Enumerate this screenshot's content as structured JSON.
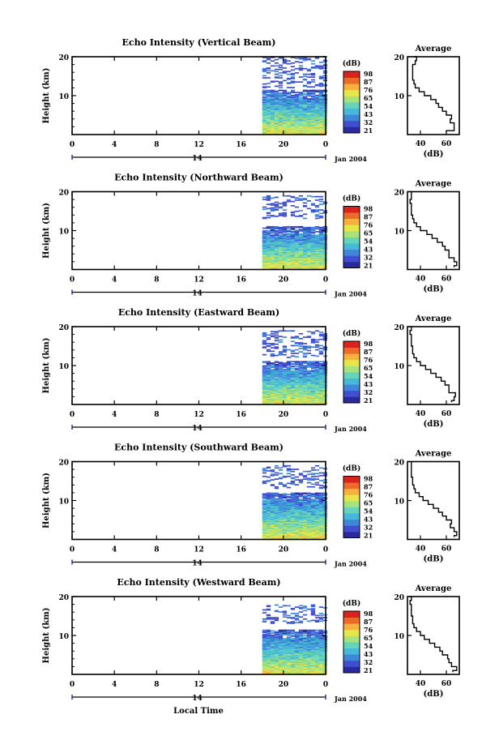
{
  "chart_data": [
    {
      "type": "heatmap",
      "title": "Echo Intensity (Vertical Beam)",
      "ylabel": "Height (km)",
      "yticks": [
        "20",
        "10"
      ],
      "xticks": [
        "0",
        "4",
        "8",
        "12",
        "16",
        "20",
        "0"
      ],
      "xlim": [
        0,
        24
      ],
      "ylim": [
        0,
        20
      ],
      "date_tick": "14",
      "date_label": "Jan 2004",
      "data_start_hour": 18,
      "upper_layer_km": [
        12,
        20
      ],
      "main_layer_top_km": 11.5,
      "colorbar": {
        "unit": "(dB)",
        "ticks": [
          "98",
          "87",
          "76",
          "65",
          "54",
          "43",
          "32",
          "21"
        ]
      },
      "average": {
        "title": "Average",
        "xlabel": "(dB)",
        "xticks": [
          "40",
          "60"
        ],
        "xlim": [
          30,
          70
        ],
        "height_km": [
          0.6,
          1,
          2,
          3,
          4,
          5,
          6,
          7,
          8,
          9,
          10,
          11,
          12,
          13,
          14,
          15,
          16,
          17,
          18,
          19,
          20
        ],
        "intensity_db": [
          60,
          66,
          66,
          63,
          64,
          60,
          57,
          54,
          52,
          48,
          43,
          39,
          36,
          35,
          34,
          34,
          34,
          34,
          36,
          37,
          35
        ]
      }
    },
    {
      "type": "heatmap",
      "title": "Echo Intensity (Northward Beam)",
      "ylabel": "Height (km)",
      "yticks": [
        "20",
        "10"
      ],
      "xticks": [
        "0",
        "4",
        "8",
        "12",
        "16",
        "20",
        "0"
      ],
      "xlim": [
        0,
        24
      ],
      "ylim": [
        0,
        20
      ],
      "date_tick": "14",
      "date_label": "Jan 2004",
      "data_start_hour": 18,
      "upper_layer_km": [
        13,
        19
      ],
      "main_layer_top_km": 11,
      "colorbar": {
        "unit": "(dB)",
        "ticks": [
          "98",
          "87",
          "76",
          "65",
          "54",
          "43",
          "32",
          "21"
        ]
      },
      "average": {
        "title": "Average",
        "xlabel": "(dB)",
        "xticks": [
          "40",
          "60"
        ],
        "xlim": [
          30,
          70
        ],
        "height_km": [
          0.6,
          1,
          2,
          3,
          4,
          5,
          6,
          7,
          8,
          9,
          10,
          11,
          12,
          13,
          14,
          15,
          16,
          17,
          18,
          19,
          20
        ],
        "intensity_db": [
          66,
          68,
          66,
          62,
          62,
          59,
          57,
          53,
          49,
          45,
          40,
          37,
          35,
          34,
          33,
          33,
          33,
          32,
          33,
          33,
          32
        ]
      }
    },
    {
      "type": "heatmap",
      "title": "Echo Intensity (Eastward Beam)",
      "ylabel": "Height (km)",
      "yticks": [
        "20",
        "10"
      ],
      "xticks": [
        "0",
        "4",
        "8",
        "12",
        "16",
        "20",
        "0"
      ],
      "xlim": [
        0,
        24
      ],
      "ylim": [
        0,
        20
      ],
      "date_tick": "14",
      "date_label": "Jan 2004",
      "data_start_hour": 18,
      "upper_layer_km": [
        12,
        19
      ],
      "main_layer_top_km": 11,
      "colorbar": {
        "unit": "(dB)",
        "ticks": [
          "98",
          "87",
          "76",
          "65",
          "54",
          "43",
          "32",
          "21"
        ]
      },
      "average": {
        "title": "Average",
        "xlabel": "(dB)",
        "xticks": [
          "40",
          "60"
        ],
        "xlim": [
          30,
          70
        ],
        "height_km": [
          0.6,
          1,
          2,
          3,
          4,
          5,
          6,
          7,
          8,
          9,
          10,
          11,
          12,
          13,
          14,
          15,
          16,
          17,
          18,
          19,
          20
        ],
        "intensity_db": [
          64,
          66,
          67,
          62,
          62,
          59,
          56,
          52,
          48,
          44,
          40,
          37,
          35,
          34,
          34,
          33,
          33,
          33,
          32,
          33,
          33
        ]
      }
    },
    {
      "type": "heatmap",
      "title": "Echo Intensity (Southward Beam)",
      "ylabel": "Height (km)",
      "yticks": [
        "20",
        "10"
      ],
      "xticks": [
        "0",
        "4",
        "8",
        "12",
        "16",
        "20",
        "0"
      ],
      "xlim": [
        0,
        24
      ],
      "ylim": [
        0,
        20
      ],
      "date_tick": "14",
      "date_label": "Jan 2004",
      "data_start_hour": 18,
      "upper_layer_km": [
        13,
        19
      ],
      "main_layer_top_km": 12,
      "colorbar": {
        "unit": "(dB)",
        "ticks": [
          "98",
          "87",
          "76",
          "65",
          "54",
          "43",
          "32",
          "21"
        ]
      },
      "average": {
        "title": "Average",
        "xlabel": "(dB)",
        "xticks": [
          "40",
          "60"
        ],
        "xlim": [
          30,
          70
        ],
        "height_km": [
          0.6,
          1,
          2,
          3,
          4,
          5,
          6,
          7,
          8,
          9,
          10,
          11,
          12,
          13,
          14,
          15,
          16,
          17,
          18,
          19,
          20
        ],
        "intensity_db": [
          66,
          68,
          66,
          63,
          64,
          60,
          57,
          54,
          50,
          46,
          42,
          39,
          36,
          35,
          34,
          34,
          33,
          33,
          33,
          33,
          33
        ]
      }
    },
    {
      "type": "heatmap",
      "title": "Echo Intensity (Westward Beam)",
      "ylabel": "Height (km)",
      "yticks": [
        "20",
        "10"
      ],
      "xticks": [
        "0",
        "4",
        "8",
        "12",
        "16",
        "20",
        "0"
      ],
      "xlim": [
        0,
        24
      ],
      "ylim": [
        0,
        20
      ],
      "date_tick": "14",
      "date_label": "Jan 2004",
      "data_start_hour": 18,
      "upper_layer_km": [
        13,
        18
      ],
      "main_layer_top_km": 11.5,
      "colorbar": {
        "unit": "(dB)",
        "ticks": [
          "98",
          "87",
          "76",
          "65",
          "54",
          "43",
          "32",
          "21"
        ]
      },
      "average": {
        "title": "Average",
        "xlabel": "(dB)",
        "xticks": [
          "40",
          "60"
        ],
        "xlim": [
          30,
          70
        ],
        "height_km": [
          0.6,
          1,
          2,
          3,
          4,
          5,
          6,
          7,
          8,
          9,
          10,
          11,
          12,
          13,
          14,
          15,
          16,
          17,
          18,
          19,
          20
        ],
        "intensity_db": [
          65,
          68,
          64,
          62,
          61,
          57,
          55,
          51,
          47,
          43,
          40,
          37,
          35,
          34,
          34,
          33,
          33,
          33,
          32,
          33,
          32
        ]
      }
    }
  ],
  "footer": {
    "xlabel": "Local Time"
  },
  "palette": [
    "#2a2a9c",
    "#3f4fcf",
    "#3f87d8",
    "#46b8d8",
    "#66d4b8",
    "#a8e27a",
    "#e6e64a",
    "#f6b23c",
    "#ec6a2a",
    "#d9241e"
  ]
}
